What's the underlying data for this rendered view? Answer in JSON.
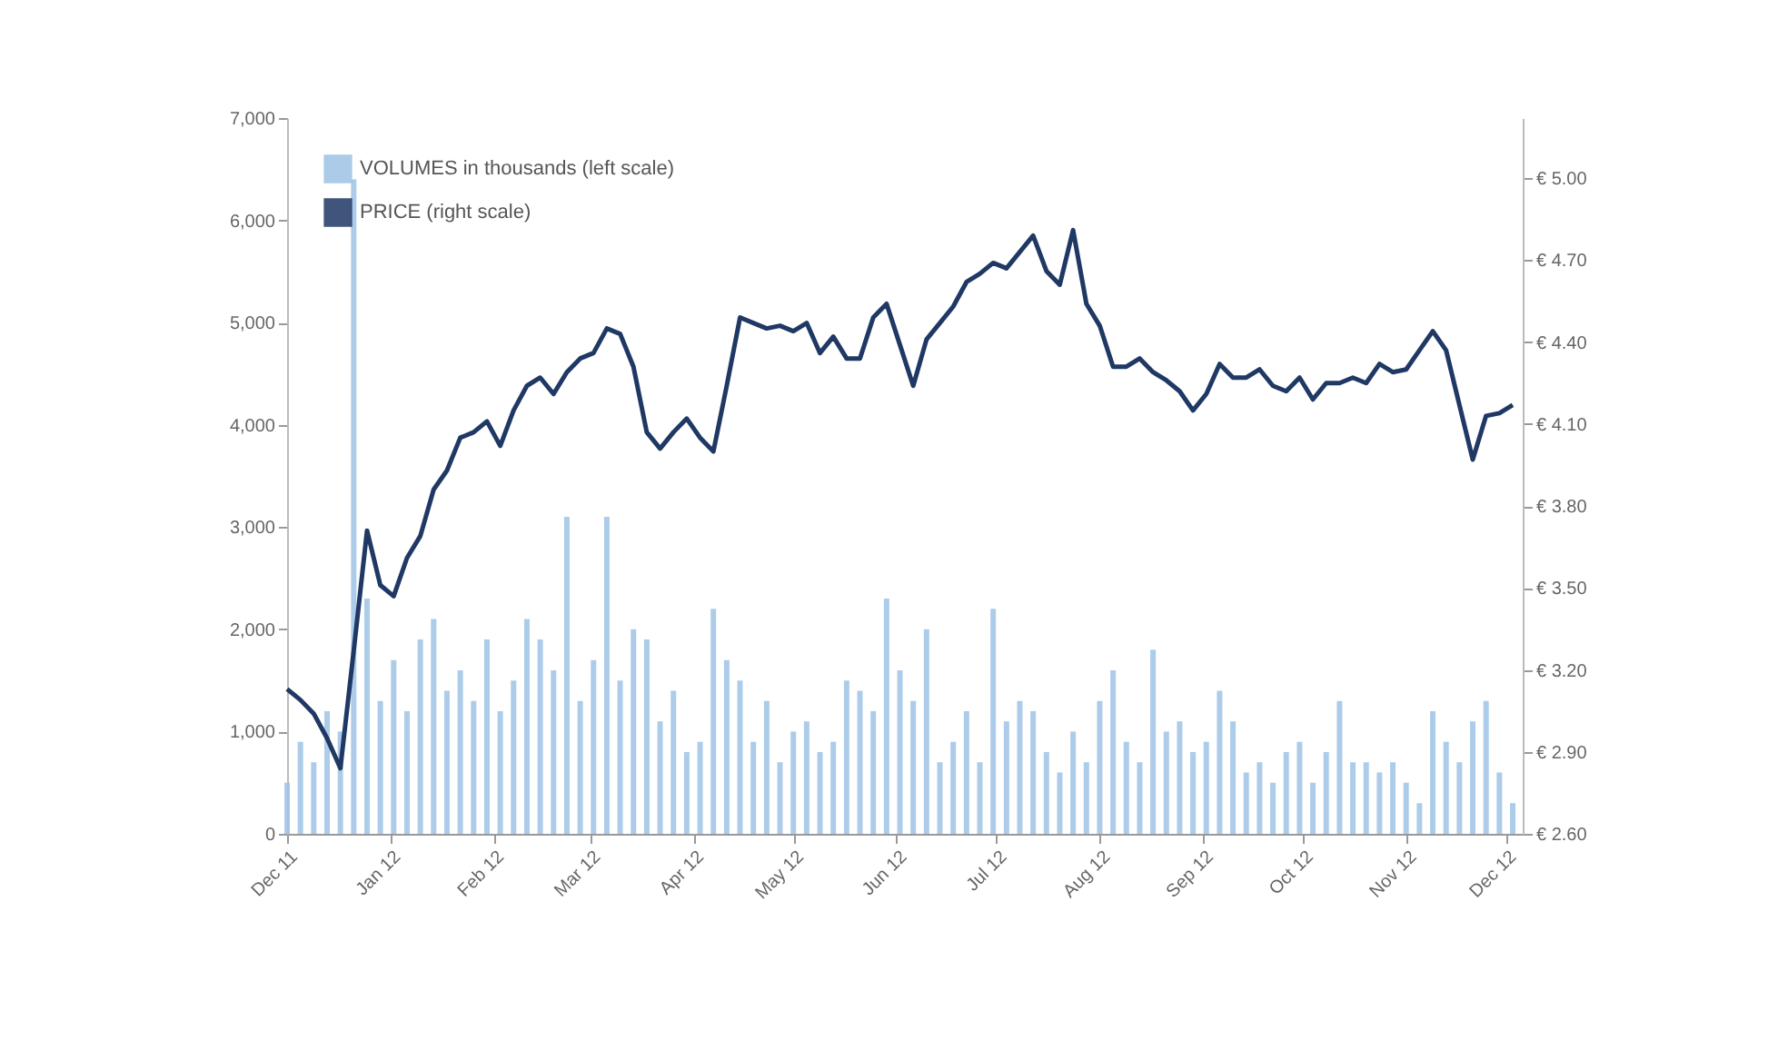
{
  "chart_data": {
    "type": "bar",
    "x": [
      "2011-12-01",
      "2011-12-05",
      "2011-12-09",
      "2011-12-13",
      "2011-12-17",
      "2011-12-21",
      "2011-12-25",
      "2011-12-29",
      "2012-01-02",
      "2012-01-06",
      "2012-01-10",
      "2012-01-14",
      "2012-01-18",
      "2012-01-22",
      "2012-01-26",
      "2012-01-30",
      "2012-02-03",
      "2012-02-07",
      "2012-02-11",
      "2012-02-15",
      "2012-02-19",
      "2012-02-23",
      "2012-02-27",
      "2012-03-02",
      "2012-03-06",
      "2012-03-10",
      "2012-03-14",
      "2012-03-18",
      "2012-03-22",
      "2012-03-26",
      "2012-03-30",
      "2012-04-03",
      "2012-04-07",
      "2012-04-11",
      "2012-04-15",
      "2012-04-19",
      "2012-04-23",
      "2012-04-27",
      "2012-05-01",
      "2012-05-05",
      "2012-05-09",
      "2012-05-13",
      "2012-05-17",
      "2012-05-21",
      "2012-05-25",
      "2012-05-29",
      "2012-06-02",
      "2012-06-06",
      "2012-06-10",
      "2012-06-14",
      "2012-06-18",
      "2012-06-22",
      "2012-06-26",
      "2012-06-30",
      "2012-07-04",
      "2012-07-08",
      "2012-07-12",
      "2012-07-16",
      "2012-07-20",
      "2012-07-24",
      "2012-07-28",
      "2012-08-01",
      "2012-08-05",
      "2012-08-09",
      "2012-08-13",
      "2012-08-17",
      "2012-08-21",
      "2012-08-25",
      "2012-08-29",
      "2012-09-02",
      "2012-09-06",
      "2012-09-10",
      "2012-09-14",
      "2012-09-18",
      "2012-09-22",
      "2012-09-26",
      "2012-09-30",
      "2012-10-04",
      "2012-10-08",
      "2012-10-12",
      "2012-10-16",
      "2012-10-20",
      "2012-10-24",
      "2012-10-28",
      "2012-11-01",
      "2012-11-05",
      "2012-11-09",
      "2012-11-13",
      "2012-11-17",
      "2012-11-21",
      "2012-11-25",
      "2012-11-29",
      "2012-12-03"
    ],
    "series": [
      {
        "name": "VOLUMES in thousands (left scale)",
        "color": "#9dc3e6",
        "values": [
          500,
          900,
          700,
          1200,
          1000,
          6400,
          2300,
          1300,
          1700,
          1200,
          1900,
          2100,
          1400,
          1600,
          1300,
          1900,
          1200,
          1500,
          2100,
          1900,
          1600,
          3100,
          1300,
          1700,
          3100,
          1500,
          2000,
          1900,
          1100,
          1400,
          800,
          900,
          2200,
          1700,
          1500,
          900,
          1300,
          700,
          1000,
          1100,
          800,
          900,
          1500,
          1400,
          1200,
          2300,
          1600,
          1300,
          2000,
          700,
          900,
          1200,
          700,
          2200,
          1100,
          1300,
          1200,
          800,
          600,
          1000,
          700,
          1300,
          1600,
          900,
          700,
          1800,
          1000,
          1100,
          800,
          900,
          1400,
          1100,
          600,
          700,
          500,
          800,
          900,
          500,
          800,
          1300,
          700,
          700,
          600,
          700,
          500,
          300,
          1200,
          900,
          700,
          1100,
          1300,
          600,
          300
        ]
      },
      {
        "name": "PRICE (right scale)",
        "type": "line",
        "axis": "y2",
        "color": "#1f3864",
        "values": [
          3.13,
          3.09,
          3.04,
          2.95,
          2.84,
          3.27,
          3.71,
          3.51,
          3.47,
          3.61,
          3.69,
          3.86,
          3.93,
          4.05,
          4.07,
          4.11,
          4.02,
          4.15,
          4.24,
          4.27,
          4.21,
          4.29,
          4.34,
          4.36,
          4.45,
          4.43,
          4.31,
          4.07,
          4.01,
          4.07,
          4.12,
          4.05,
          4.0,
          4.24,
          4.49,
          4.47,
          4.45,
          4.46,
          4.44,
          4.47,
          4.36,
          4.42,
          4.34,
          4.34,
          4.49,
          4.54,
          4.39,
          4.24,
          4.41,
          4.47,
          4.53,
          4.62,
          4.65,
          4.69,
          4.67,
          4.73,
          4.79,
          4.66,
          4.61,
          4.81,
          4.54,
          4.46,
          4.31,
          4.31,
          4.34,
          4.29,
          4.26,
          4.22,
          4.15,
          4.21,
          4.32,
          4.27,
          4.27,
          4.3,
          4.24,
          4.22,
          4.27,
          4.19,
          4.25,
          4.25,
          4.27,
          4.25,
          4.32,
          4.29,
          4.3,
          4.37,
          4.44,
          4.37,
          4.17,
          3.97,
          4.13,
          4.14,
          4.17
        ]
      }
    ],
    "xlim": [
      "2011-12-01",
      "2012-12-06"
    ],
    "xticks": [
      {
        "value": "2011-12-01",
        "label": "Dec 11"
      },
      {
        "value": "2012-01-01",
        "label": "Jan 12"
      },
      {
        "value": "2012-02-01",
        "label": "Feb 12"
      },
      {
        "value": "2012-03-01",
        "label": "Mar 12"
      },
      {
        "value": "2012-04-01",
        "label": "Apr 12"
      },
      {
        "value": "2012-05-01",
        "label": "May 12"
      },
      {
        "value": "2012-06-01",
        "label": "Jun 12"
      },
      {
        "value": "2012-07-01",
        "label": "Jul 12"
      },
      {
        "value": "2012-08-01",
        "label": "Aug 12"
      },
      {
        "value": "2012-09-01",
        "label": "Sep 12"
      },
      {
        "value": "2012-10-01",
        "label": "Oct 12"
      },
      {
        "value": "2012-11-01",
        "label": "Nov 12"
      },
      {
        "value": "2012-12-01",
        "label": "Dec 12"
      }
    ],
    "ylim": [
      0,
      7000
    ],
    "yticks": [
      0,
      {
        "value": 1000,
        "label": "1,000"
      },
      {
        "value": 2000,
        "label": "2,000"
      },
      {
        "value": 3000,
        "label": "3,000"
      },
      {
        "value": 4000,
        "label": "4,000"
      },
      {
        "value": 5000,
        "label": "5,000"
      },
      {
        "value": 6000,
        "label": "6,000"
      },
      {
        "value": 7000,
        "label": "7,000"
      }
    ],
    "y2lim": [
      2.6,
      5.22
    ],
    "y2ticks": [
      {
        "value": 2.6,
        "label": "€ 2.60"
      },
      {
        "value": 2.9,
        "label": "€ 2.90"
      },
      {
        "value": 3.2,
        "label": "€ 3.20"
      },
      {
        "value": 3.5,
        "label": "€ 3.50"
      },
      {
        "value": 3.8,
        "label": "€ 3.80"
      },
      {
        "value": 4.1,
        "label": "€ 4.10"
      },
      {
        "value": 4.4,
        "label": "€ 4.40"
      },
      {
        "value": 4.7,
        "label": "€ 4.70"
      },
      {
        "value": 5.0,
        "label": "€ 5.00"
      }
    ],
    "legend": "top left"
  }
}
